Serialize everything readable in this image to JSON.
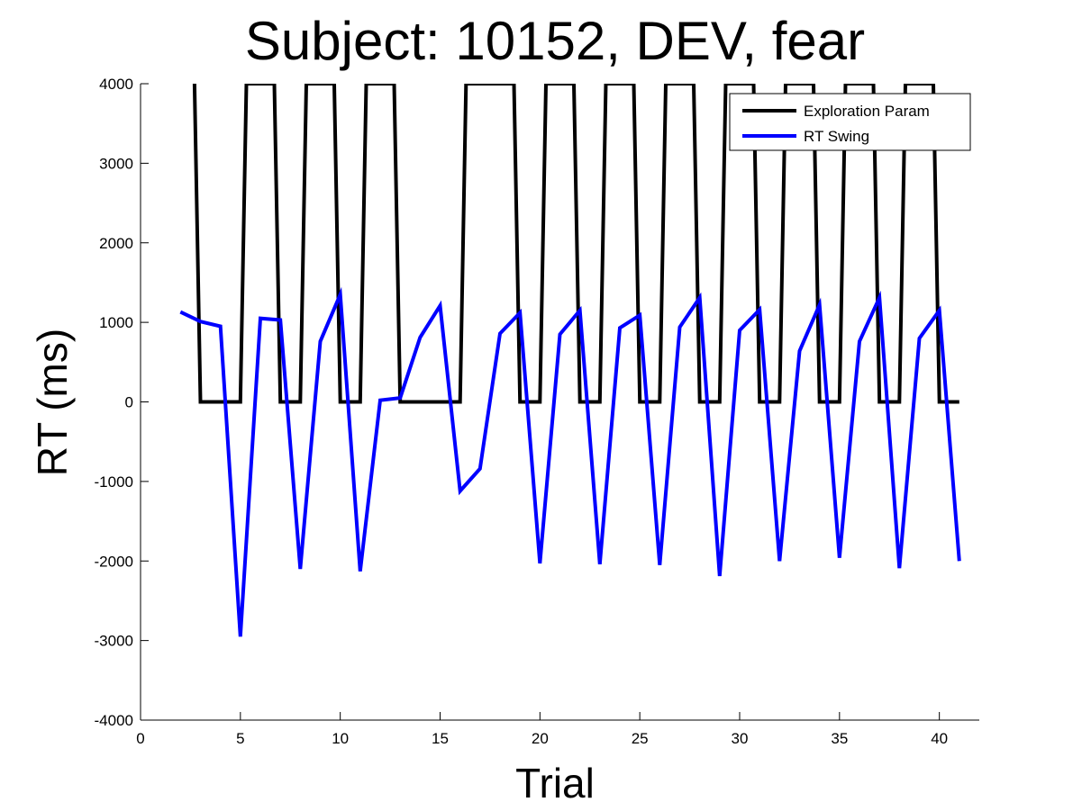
{
  "chart_data": {
    "type": "line",
    "title": "Subject: 10152, DEV, fear",
    "xlabel": "Trial",
    "ylabel": "RT (ms)",
    "xlim": [
      0,
      42
    ],
    "ylim": [
      -4000,
      4000
    ],
    "xticks": [
      0,
      5,
      10,
      15,
      20,
      25,
      30,
      35,
      40
    ],
    "yticks": [
      -4000,
      -3000,
      -2000,
      -1000,
      0,
      1000,
      2000,
      3000,
      4000
    ],
    "grid": false,
    "legend_position": "top-right",
    "series": [
      {
        "name": "Exploration Param",
        "color": "#000000",
        "points": [
          [
            2.7,
            4000
          ],
          [
            3,
            0
          ],
          [
            5,
            0
          ],
          [
            5.3,
            4000
          ],
          [
            6.7,
            4000
          ],
          [
            7,
            0
          ],
          [
            8,
            0
          ],
          [
            8.3,
            4000
          ],
          [
            9.7,
            4000
          ],
          [
            10,
            0
          ],
          [
            11,
            0
          ],
          [
            11.3,
            4000
          ],
          [
            12.7,
            4000
          ],
          [
            13,
            0
          ],
          [
            16,
            0
          ],
          [
            16.3,
            4000
          ],
          [
            18.7,
            4000
          ],
          [
            19,
            0
          ],
          [
            20,
            0
          ],
          [
            20.3,
            4000
          ],
          [
            21.7,
            4000
          ],
          [
            22,
            0
          ],
          [
            23,
            0
          ],
          [
            23.3,
            4000
          ],
          [
            24.7,
            4000
          ],
          [
            25,
            0
          ],
          [
            26,
            0
          ],
          [
            26.3,
            4000
          ],
          [
            27.7,
            4000
          ],
          [
            28,
            0
          ],
          [
            29,
            0
          ],
          [
            29.3,
            4000
          ],
          [
            30.7,
            4000
          ],
          [
            31,
            0
          ],
          [
            32,
            0
          ],
          [
            32.3,
            4000
          ],
          [
            33.7,
            4000
          ],
          [
            34,
            0
          ],
          [
            35,
            0
          ],
          [
            35.3,
            4000
          ],
          [
            36.7,
            4000
          ],
          [
            37,
            0
          ],
          [
            38,
            0
          ],
          [
            38.3,
            4000
          ],
          [
            39.7,
            4000
          ],
          [
            40,
            0
          ],
          [
            41,
            0
          ]
        ]
      },
      {
        "name": "RT Swing",
        "color": "#0000ff",
        "points": [
          [
            2,
            1130
          ],
          [
            3,
            1010
          ],
          [
            4,
            950
          ],
          [
            5,
            -2950
          ],
          [
            6,
            1050
          ],
          [
            7,
            1030
          ],
          [
            8,
            -2100
          ],
          [
            9,
            760
          ],
          [
            10,
            1350
          ],
          [
            11,
            -2130
          ],
          [
            12,
            20
          ],
          [
            13,
            50
          ],
          [
            14,
            810
          ],
          [
            15,
            1210
          ],
          [
            16,
            -1120
          ],
          [
            17,
            -840
          ],
          [
            18,
            860
          ],
          [
            19,
            1120
          ],
          [
            20,
            -2030
          ],
          [
            21,
            850
          ],
          [
            22,
            1150
          ],
          [
            23,
            -2040
          ],
          [
            24,
            930
          ],
          [
            25,
            1090
          ],
          [
            26,
            -2050
          ],
          [
            27,
            940
          ],
          [
            28,
            1310
          ],
          [
            29,
            -2190
          ],
          [
            30,
            900
          ],
          [
            31,
            1160
          ],
          [
            32,
            -2000
          ],
          [
            33,
            640
          ],
          [
            34,
            1220
          ],
          [
            35,
            -1960
          ],
          [
            36,
            760
          ],
          [
            37,
            1310
          ],
          [
            38,
            -2090
          ],
          [
            39,
            800
          ],
          [
            40,
            1150
          ],
          [
            41,
            -2000
          ]
        ]
      }
    ]
  }
}
